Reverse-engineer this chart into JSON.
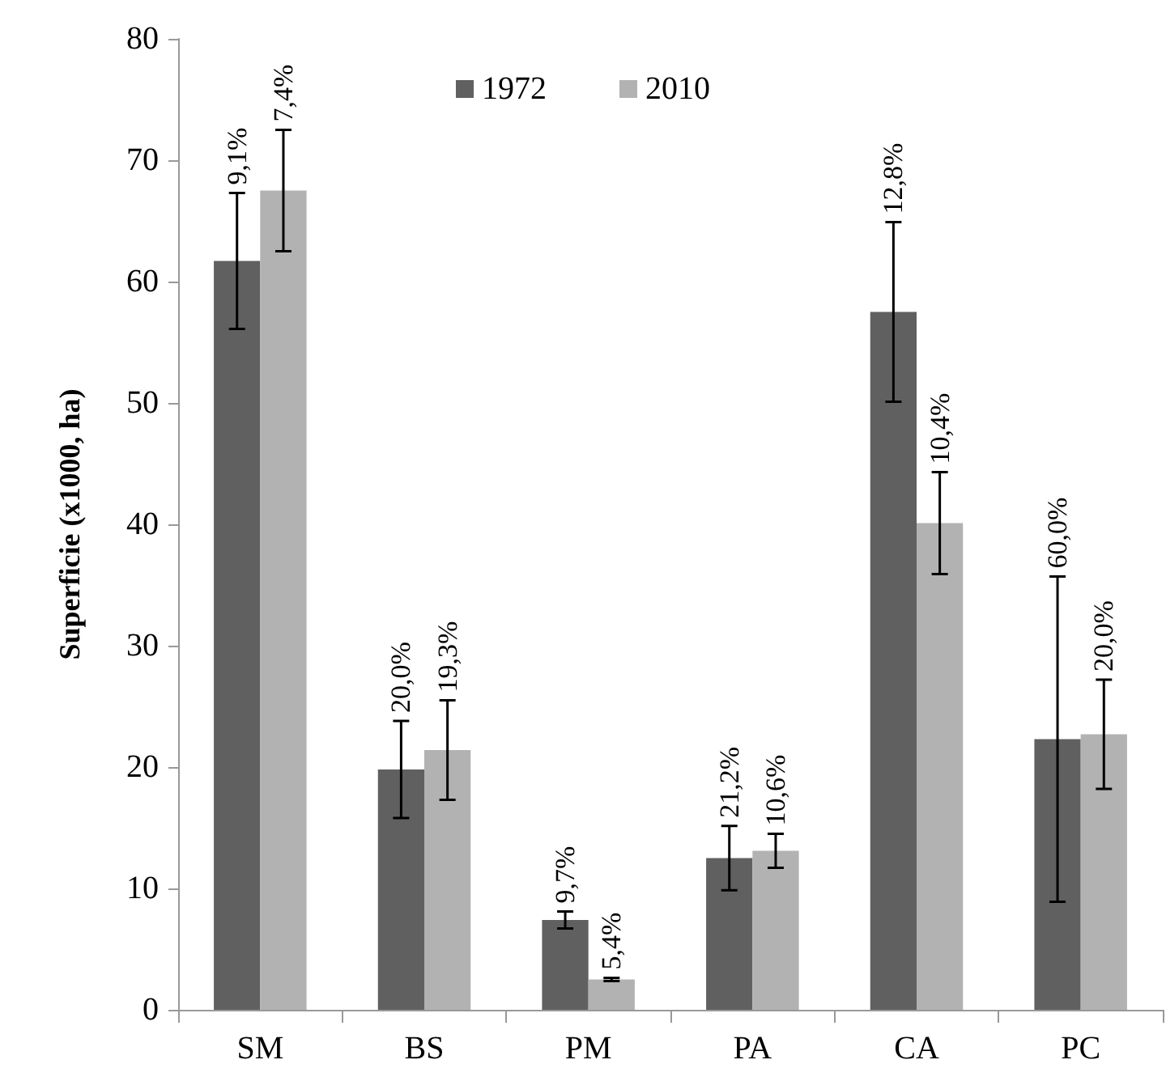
{
  "chart_data": {
    "type": "bar",
    "ylabel": "Superficie (x1000, ha)",
    "categories": [
      "SM",
      "BS",
      "PM",
      "PA",
      "CA",
      "PC"
    ],
    "series": [
      {
        "name": "1972",
        "color": "#606060",
        "values": [
          61.7,
          19.8,
          7.4,
          12.5,
          57.5,
          22.3
        ],
        "errors": [
          5.6,
          4.0,
          0.7,
          2.65,
          7.4,
          13.4
        ]
      },
      {
        "name": "2010",
        "color": "#b2b2b2",
        "values": [
          67.5,
          21.4,
          2.5,
          13.1,
          40.1,
          22.7
        ],
        "errors": [
          5.0,
          4.1,
          0.13,
          1.4,
          4.2,
          4.5
        ]
      }
    ],
    "annotations": [
      "9,1%",
      "7,4%",
      "20,0%",
      "19,3%",
      "9,7%",
      "5,4%",
      "21,2%",
      "10,6%",
      "12,8%",
      "10,4%",
      "60,0%",
      "20,0%"
    ],
    "ylim": [
      0,
      80
    ],
    "yticks": [
      0,
      10,
      20,
      30,
      40,
      50,
      60,
      70,
      80
    ],
    "grid": false,
    "legend": "top"
  }
}
